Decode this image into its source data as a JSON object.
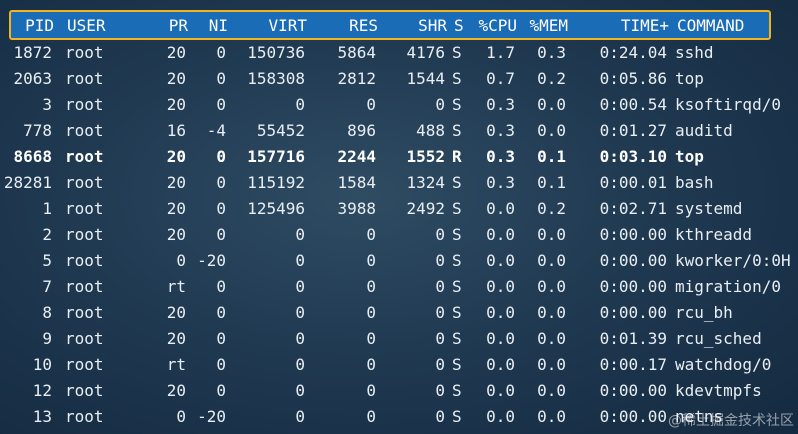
{
  "headers": {
    "pid": "PID",
    "user": "USER",
    "pr": "PR",
    "ni": "NI",
    "virt": "VIRT",
    "res": "RES",
    "shr": "SHR",
    "s": "S",
    "cpu": "%CPU",
    "mem": "%MEM",
    "time": "TIME+",
    "command": "COMMAND"
  },
  "processes": [
    {
      "pid": "1872",
      "user": "root",
      "pr": "20",
      "ni": "0",
      "virt": "150736",
      "res": "5864",
      "shr": "4176",
      "s": "S",
      "cpu": "1.7",
      "mem": "0.3",
      "time": "0:24.04",
      "command": "sshd",
      "bold": false
    },
    {
      "pid": "2063",
      "user": "root",
      "pr": "20",
      "ni": "0",
      "virt": "158308",
      "res": "2812",
      "shr": "1544",
      "s": "S",
      "cpu": "0.7",
      "mem": "0.2",
      "time": "0:05.86",
      "command": "top",
      "bold": false
    },
    {
      "pid": "3",
      "user": "root",
      "pr": "20",
      "ni": "0",
      "virt": "0",
      "res": "0",
      "shr": "0",
      "s": "S",
      "cpu": "0.3",
      "mem": "0.0",
      "time": "0:00.54",
      "command": "ksoftirqd/0",
      "bold": false
    },
    {
      "pid": "778",
      "user": "root",
      "pr": "16",
      "ni": "-4",
      "virt": "55452",
      "res": "896",
      "shr": "488",
      "s": "S",
      "cpu": "0.3",
      "mem": "0.0",
      "time": "0:01.27",
      "command": "auditd",
      "bold": false
    },
    {
      "pid": "8668",
      "user": "root",
      "pr": "20",
      "ni": "0",
      "virt": "157716",
      "res": "2244",
      "shr": "1552",
      "s": "R",
      "cpu": "0.3",
      "mem": "0.1",
      "time": "0:03.10",
      "command": "top",
      "bold": true
    },
    {
      "pid": "28281",
      "user": "root",
      "pr": "20",
      "ni": "0",
      "virt": "115192",
      "res": "1584",
      "shr": "1324",
      "s": "S",
      "cpu": "0.3",
      "mem": "0.1",
      "time": "0:00.01",
      "command": "bash",
      "bold": false
    },
    {
      "pid": "1",
      "user": "root",
      "pr": "20",
      "ni": "0",
      "virt": "125496",
      "res": "3988",
      "shr": "2492",
      "s": "S",
      "cpu": "0.0",
      "mem": "0.2",
      "time": "0:02.71",
      "command": "systemd",
      "bold": false
    },
    {
      "pid": "2",
      "user": "root",
      "pr": "20",
      "ni": "0",
      "virt": "0",
      "res": "0",
      "shr": "0",
      "s": "S",
      "cpu": "0.0",
      "mem": "0.0",
      "time": "0:00.00",
      "command": "kthreadd",
      "bold": false
    },
    {
      "pid": "5",
      "user": "root",
      "pr": "0",
      "ni": "-20",
      "virt": "0",
      "res": "0",
      "shr": "0",
      "s": "S",
      "cpu": "0.0",
      "mem": "0.0",
      "time": "0:00.00",
      "command": "kworker/0:0H",
      "bold": false
    },
    {
      "pid": "7",
      "user": "root",
      "pr": "rt",
      "ni": "0",
      "virt": "0",
      "res": "0",
      "shr": "0",
      "s": "S",
      "cpu": "0.0",
      "mem": "0.0",
      "time": "0:00.00",
      "command": "migration/0",
      "bold": false
    },
    {
      "pid": "8",
      "user": "root",
      "pr": "20",
      "ni": "0",
      "virt": "0",
      "res": "0",
      "shr": "0",
      "s": "S",
      "cpu": "0.0",
      "mem": "0.0",
      "time": "0:00.00",
      "command": "rcu_bh",
      "bold": false
    },
    {
      "pid": "9",
      "user": "root",
      "pr": "20",
      "ni": "0",
      "virt": "0",
      "res": "0",
      "shr": "0",
      "s": "S",
      "cpu": "0.0",
      "mem": "0.0",
      "time": "0:01.39",
      "command": "rcu_sched",
      "bold": false
    },
    {
      "pid": "10",
      "user": "root",
      "pr": "rt",
      "ni": "0",
      "virt": "0",
      "res": "0",
      "shr": "0",
      "s": "S",
      "cpu": "0.0",
      "mem": "0.0",
      "time": "0:00.17",
      "command": "watchdog/0",
      "bold": false
    },
    {
      "pid": "12",
      "user": "root",
      "pr": "20",
      "ni": "0",
      "virt": "0",
      "res": "0",
      "shr": "0",
      "s": "S",
      "cpu": "0.0",
      "mem": "0.0",
      "time": "0:00.00",
      "command": "kdevtmpfs",
      "bold": false
    },
    {
      "pid": "13",
      "user": "root",
      "pr": "0",
      "ni": "-20",
      "virt": "0",
      "res": "0",
      "shr": "0",
      "s": "S",
      "cpu": "0.0",
      "mem": "0.0",
      "time": "0:00.00",
      "command": "netns",
      "bold": false
    }
  ],
  "watermark": "@稀土掘金技术社区",
  "colors": {
    "header_bg": "#1b6cb6",
    "highlight_border": "#f1b41c",
    "text": "#e8eef3"
  }
}
